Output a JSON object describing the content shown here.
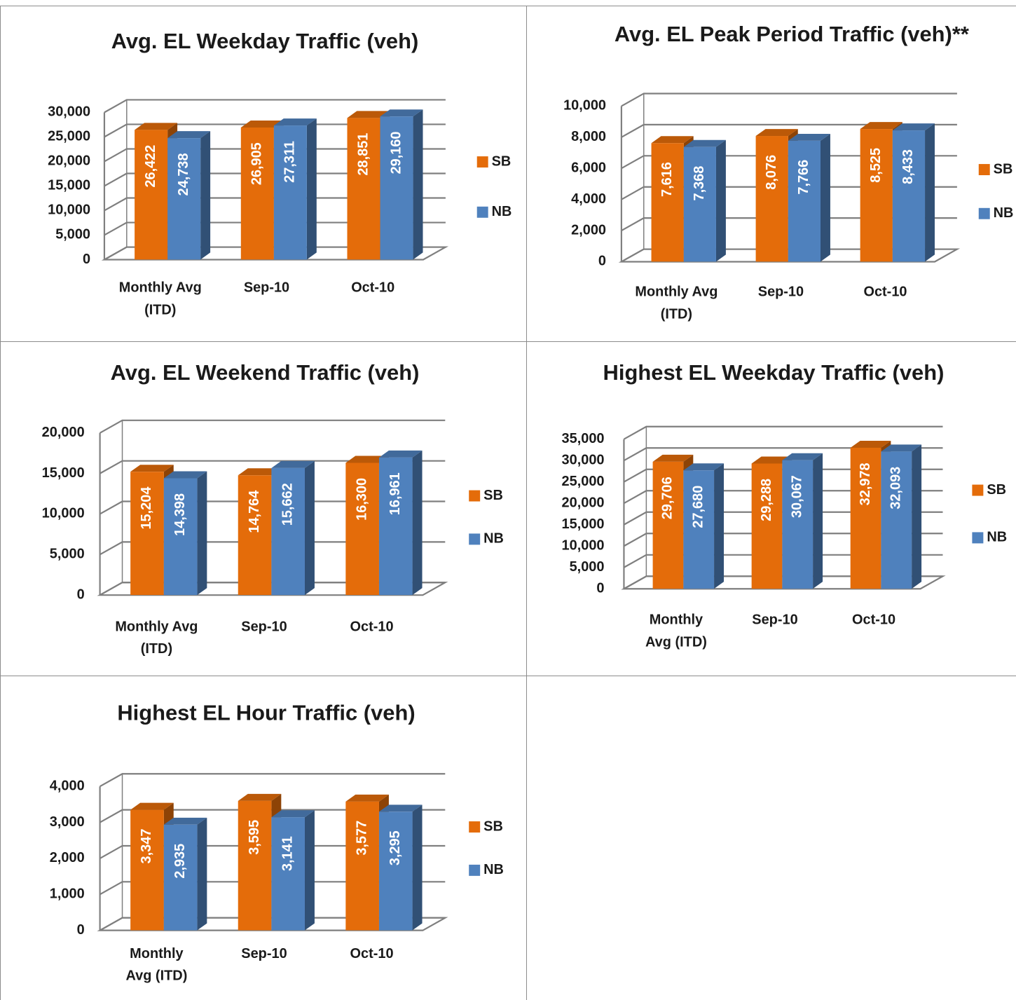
{
  "colors": {
    "SB": "#E46C0A",
    "NB": "#4F81BD",
    "grid": "#7f7f7f",
    "cell_border": "#8c8c8c"
  },
  "chart_data": [
    {
      "type": "bar",
      "title": "Avg. EL Weekday Traffic (veh)",
      "categories": [
        [
          "Monthly Avg",
          "(ITD)"
        ],
        [
          "Sep-10"
        ],
        [
          "Oct-10"
        ]
      ],
      "series": [
        {
          "name": "SB",
          "values": [
            26422,
            26905,
            28851
          ],
          "labels": [
            "26,422",
            "26,905",
            "28,851"
          ]
        },
        {
          "name": "NB",
          "values": [
            24738,
            27311,
            29160
          ],
          "labels": [
            "24,738",
            "27,311",
            "29,160"
          ]
        }
      ],
      "ylim": [
        0,
        30000
      ],
      "yticks": [
        "0",
        "5,000",
        "10,000",
        "15,000",
        "20,000",
        "25,000",
        "30,000"
      ],
      "grid": true,
      "legend": "right"
    },
    {
      "type": "bar",
      "title": "Avg. EL Peak Period Traffic (veh)**",
      "categories": [
        [
          "Monthly Avg",
          "(ITD)"
        ],
        [
          "Sep-10"
        ],
        [
          "Oct-10"
        ]
      ],
      "series": [
        {
          "name": "SB",
          "values": [
            7616,
            8076,
            8525
          ],
          "labels": [
            "7,616",
            "8,076",
            "8,525"
          ]
        },
        {
          "name": "NB",
          "values": [
            7368,
            7766,
            8433
          ],
          "labels": [
            "7,368",
            "7,766",
            "8,433"
          ]
        }
      ],
      "ylim": [
        0,
        10000
      ],
      "yticks": [
        "0",
        "2,000",
        "4,000",
        "6,000",
        "8,000",
        "10,000"
      ],
      "grid": true,
      "legend": "right"
    },
    {
      "type": "bar",
      "title": "Avg. EL Weekend Traffic (veh)",
      "categories": [
        [
          "Monthly Avg",
          "(ITD)"
        ],
        [
          "Sep-10"
        ],
        [
          "Oct-10"
        ]
      ],
      "series": [
        {
          "name": "SB",
          "values": [
            15204,
            14764,
            16300
          ],
          "labels": [
            "15,204",
            "14,764",
            "16,300"
          ]
        },
        {
          "name": "NB",
          "values": [
            14398,
            15662,
            16961
          ],
          "labels": [
            "14,398",
            "15,662",
            "16,961"
          ]
        }
      ],
      "ylim": [
        0,
        20000
      ],
      "yticks": [
        "0",
        "5,000",
        "10,000",
        "15,000",
        "20,000"
      ],
      "grid": true,
      "legend": "right"
    },
    {
      "type": "bar",
      "title": "Highest EL Weekday Traffic (veh)",
      "categories": [
        [
          "Monthly",
          "Avg (ITD)"
        ],
        [
          "Sep-10"
        ],
        [
          "Oct-10"
        ]
      ],
      "series": [
        {
          "name": "SB",
          "values": [
            29706,
            29288,
            32978
          ],
          "labels": [
            "29,706",
            "29,288",
            "32,978"
          ]
        },
        {
          "name": "NB",
          "values": [
            27680,
            30067,
            32093
          ],
          "labels": [
            "27,680",
            "30,067",
            "32,093"
          ]
        }
      ],
      "ylim": [
        0,
        35000
      ],
      "yticks": [
        "0",
        "5,000",
        "10,000",
        "15,000",
        "20,000",
        "25,000",
        "30,000",
        "35,000"
      ],
      "grid": true,
      "legend": "right"
    },
    {
      "type": "bar",
      "title": "Highest EL Hour Traffic (veh)",
      "categories": [
        [
          "Monthly",
          "Avg (ITD)"
        ],
        [
          "Sep-10"
        ],
        [
          "Oct-10"
        ]
      ],
      "series": [
        {
          "name": "SB",
          "values": [
            3347,
            3595,
            3577
          ],
          "labels": [
            "3,347",
            "3,595",
            "3,577"
          ]
        },
        {
          "name": "NB",
          "values": [
            2935,
            3141,
            3295
          ],
          "labels": [
            "2,935",
            "3,141",
            "3,295"
          ]
        }
      ],
      "ylim": [
        0,
        4000
      ],
      "yticks": [
        "0",
        "1,000",
        "2,000",
        "3,000",
        "4,000"
      ],
      "grid": true,
      "legend": "right"
    }
  ]
}
